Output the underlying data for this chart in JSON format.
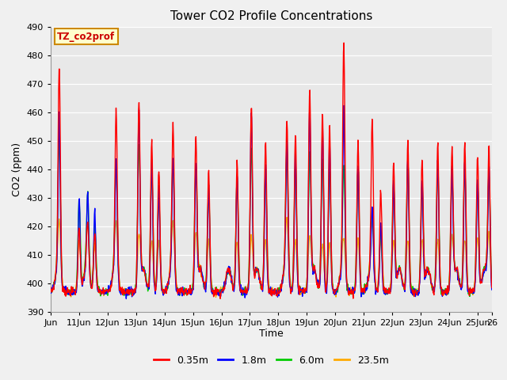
{
  "title": "Tower CO2 Profile Concentrations",
  "xlabel": "Time",
  "ylabel": "CO2 (ppm)",
  "ylim": [
    390,
    490
  ],
  "xlim": [
    0,
    15.5
  ],
  "tick_labels": [
    "Jun",
    "11Jun",
    "12Jun",
    "13Jun",
    "14Jun",
    "15Jun",
    "16Jun",
    "17Jun",
    "18Jun",
    "19Jun",
    "20Jun",
    "21Jun",
    "22Jun",
    "23Jun",
    "24Jun",
    "25Jun",
    "26"
  ],
  "tick_positions": [
    0,
    1,
    2,
    3,
    4,
    5,
    6,
    7,
    8,
    9,
    10,
    11,
    12,
    13,
    14,
    15,
    15.5
  ],
  "series_labels": [
    "0.35m",
    "1.8m",
    "6.0m",
    "23.5m"
  ],
  "series_colors": [
    "#ff0000",
    "#0000ff",
    "#00cc00",
    "#ffaa00"
  ],
  "legend_label": "TZ_co2prof",
  "bg_color": "#e8e8e8",
  "line_width": 1.0,
  "yticks": [
    390,
    400,
    410,
    420,
    430,
    440,
    450,
    460,
    470,
    480,
    490
  ],
  "fig_bg": "#f0f0f0",
  "peak_times": [
    0.3,
    1.0,
    1.3,
    1.55,
    2.3,
    3.1,
    3.55,
    3.8,
    4.3,
    5.1,
    5.55,
    6.55,
    7.05,
    7.55,
    8.3,
    8.6,
    9.1,
    9.55,
    9.8,
    10.3,
    10.8,
    11.3,
    11.6,
    12.05,
    12.55,
    13.05,
    13.6,
    14.1,
    14.55,
    15.0,
    15.4
  ],
  "peak_red": [
    470,
    420,
    415,
    418,
    455,
    463,
    450,
    440,
    450,
    450,
    440,
    443,
    462,
    450,
    451,
    453,
    466,
    460,
    455,
    478,
    450,
    451,
    432,
    442,
    450,
    443,
    449,
    446,
    450,
    445,
    446
  ],
  "peak_blue": [
    453,
    430,
    426,
    425,
    437,
    460,
    443,
    433,
    438,
    441,
    435,
    438,
    460,
    442,
    444,
    446,
    460,
    456,
    450,
    456,
    442,
    420,
    422,
    436,
    445,
    436,
    444,
    440,
    444,
    437,
    440
  ],
  "peak_green": [
    444,
    428,
    424,
    420,
    435,
    448,
    440,
    430,
    436,
    440,
    432,
    436,
    447,
    440,
    440,
    442,
    445,
    444,
    440,
    434,
    440,
    419,
    418,
    434,
    443,
    434,
    441,
    437,
    441,
    434,
    437
  ],
  "peak_orange": [
    415,
    415,
    414,
    413,
    415,
    416,
    415,
    415,
    415,
    416,
    415,
    415,
    416,
    415,
    416,
    415,
    415,
    414,
    414,
    409,
    415,
    415,
    415,
    415,
    415,
    415,
    415,
    415,
    415,
    415,
    415
  ]
}
